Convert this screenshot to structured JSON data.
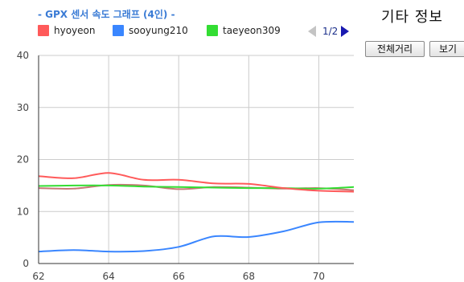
{
  "side_panel": {
    "title": "기타 정보",
    "distance_button": "전체거리",
    "view_button": "보기"
  },
  "legend": {
    "pager": "1/2"
  },
  "chart_data": {
    "type": "line",
    "title": "- GPX 센서 속도 그래프 (4인) -",
    "xlabel": "",
    "ylabel": "",
    "xlim": [
      62,
      71
    ],
    "ylim": [
      0,
      40
    ],
    "x_ticks": [
      62,
      64,
      66,
      68,
      70
    ],
    "y_ticks": [
      0,
      10,
      20,
      30,
      40
    ],
    "grid": true,
    "legend_position": "top",
    "x": [
      62,
      63,
      64,
      65,
      66,
      67,
      68,
      69,
      70,
      71
    ],
    "series": [
      {
        "name": "hyoyeon",
        "color": "#ff5a5a",
        "values": [
          16.8,
          16.4,
          17.4,
          16.1,
          16.1,
          15.4,
          15.3,
          14.5,
          14.0,
          13.8
        ]
      },
      {
        "name": "sooyung210",
        "color": "#3a86ff",
        "values": [
          2.3,
          2.6,
          2.3,
          2.4,
          3.2,
          5.2,
          5.1,
          6.2,
          7.9,
          8.0
        ]
      },
      {
        "name": "taeyeon309",
        "color": "#33dd33",
        "values": [
          14.9,
          15.0,
          15.0,
          14.8,
          14.7,
          14.6,
          14.5,
          14.5,
          14.4,
          14.7
        ]
      },
      {
        "name": "",
        "color": "#c87878",
        "values": [
          14.5,
          14.4,
          15.1,
          15.0,
          14.3,
          14.7,
          14.6,
          14.4,
          14.5,
          14.1
        ]
      }
    ]
  }
}
